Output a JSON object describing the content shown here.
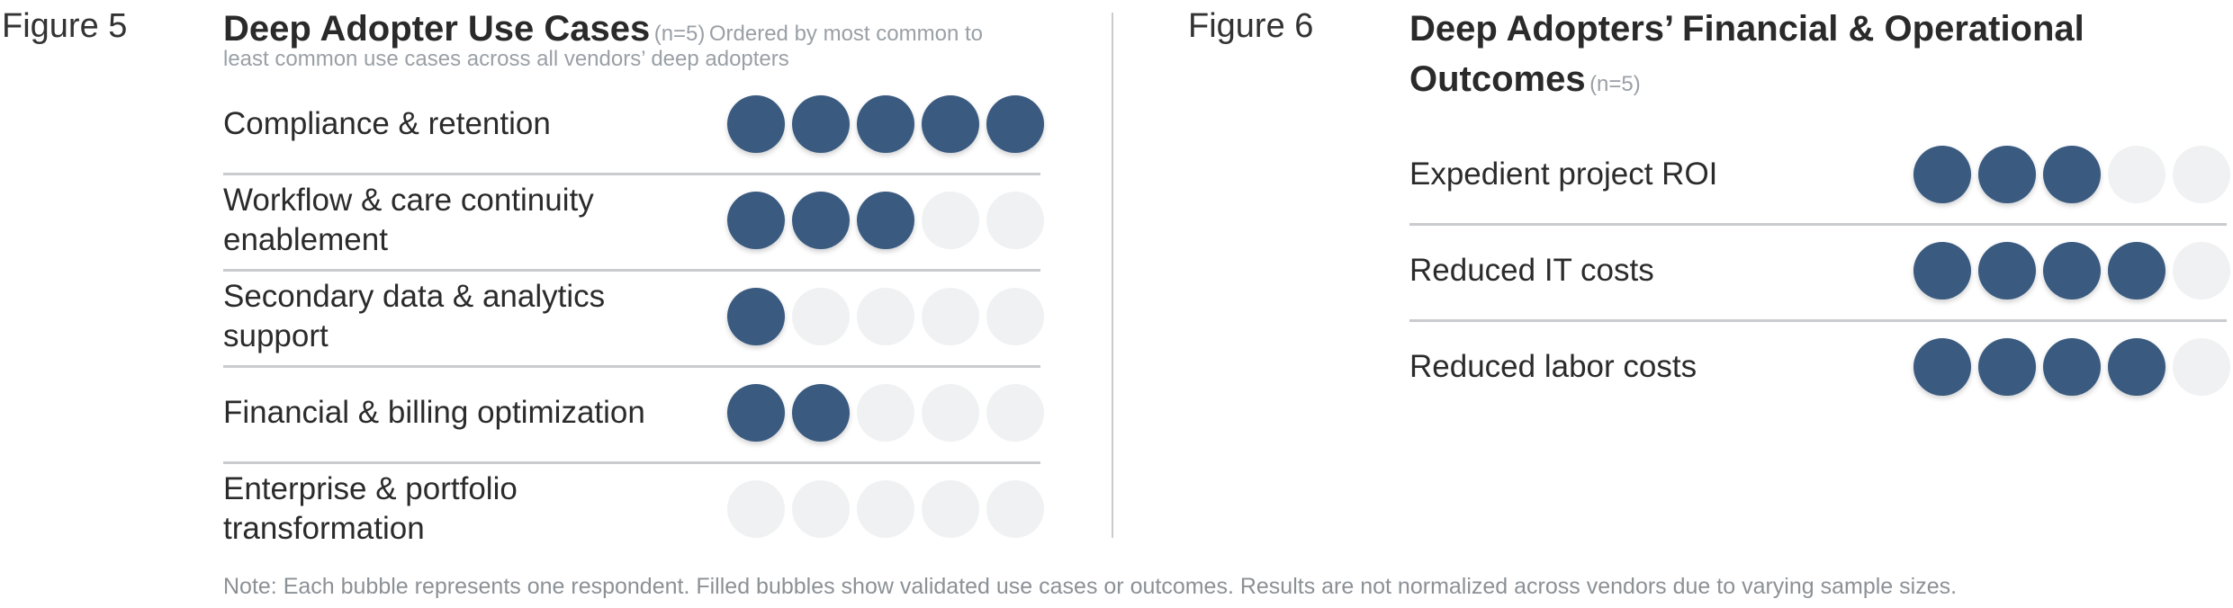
{
  "chart_data": [
    {
      "type": "table",
      "figure_label": "Figure 5",
      "title": "Deep Adopter Use Cases",
      "n_label": "(n=5)",
      "subtitle_line1": "Ordered by most common to",
      "subtitle_line2": "least common use cases across all vendors’ deep adopters",
      "max_bubbles": 5,
      "categories": [
        "Compliance & retention",
        "Workflow & care continuity\nenablement",
        "Secondary data & analytics\nsupport",
        "Financial & billing optimization",
        "Enterprise & portfolio\ntransformation"
      ],
      "values": [
        5,
        3,
        1,
        2,
        0
      ]
    },
    {
      "type": "table",
      "figure_label": "Figure 6",
      "title_line1": "Deep Adopters’ Financial & Operational",
      "title_line2": "Outcomes",
      "n_label": "(n=5)",
      "max_bubbles": 5,
      "categories": [
        "Expedient project ROI",
        "Reduced IT costs",
        "Reduced labor costs"
      ],
      "values": [
        3,
        4,
        4
      ]
    }
  ],
  "note": "Note: Each bubble represents one respondent. Filled bubbles show validated use cases or outcomes. Results are not normalized across vendors due to varying sample sizes.",
  "colors": {
    "filled": "#3a5a80",
    "empty": "#f0f1f2",
    "divider": "#c9cbce"
  }
}
